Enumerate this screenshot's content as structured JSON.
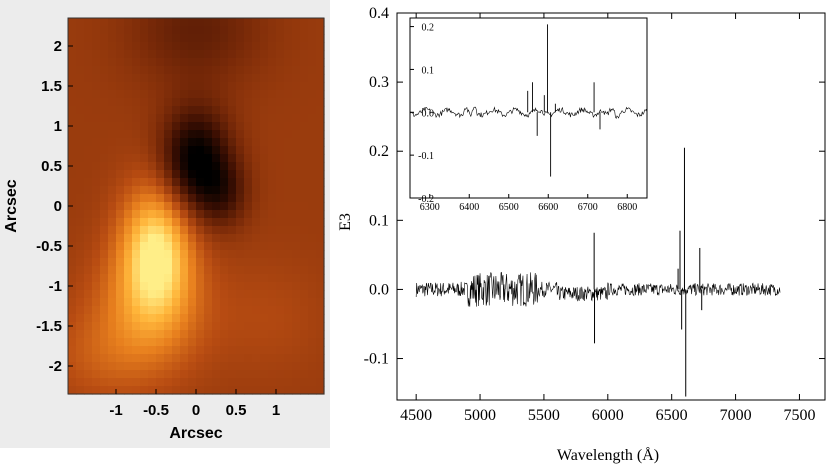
{
  "chart_data": [
    {
      "type": "heatmap",
      "xlabel": "Arcsec",
      "ylabel": "Arcsec",
      "xlim": [
        -1.6,
        1.6
      ],
      "ylim": [
        -2.35,
        2.35
      ],
      "x_ticks": [
        "-1",
        "-0.5",
        "0",
        "0.5",
        "1"
      ],
      "x_tick_values": [
        -1,
        -0.5,
        0,
        0.5,
        1
      ],
      "y_ticks": [
        "2",
        "1.5",
        "1",
        "0.5",
        "0",
        "-0.5",
        "-1",
        "-1.5",
        "-2"
      ],
      "y_tick_values": [
        2,
        1.5,
        1,
        0.5,
        0,
        -0.5,
        -1,
        -1.5,
        -2
      ],
      "colormap": [
        "#000000",
        "#3a0e02",
        "#7a2a08",
        "#b84c12",
        "#e8801e",
        "#ffb53a",
        "#ffee88"
      ],
      "background_level": 0.42,
      "features": [
        {
          "kind": "minimum",
          "x": 0.0,
          "y": 0.55,
          "sx": 0.3,
          "sy": 0.45,
          "amp": -0.45
        },
        {
          "kind": "minimum",
          "x": 0.35,
          "y": 0.15,
          "sx": 0.22,
          "sy": 0.3,
          "amp": -0.18
        },
        {
          "kind": "minimum",
          "x": 0.0,
          "y": 2.2,
          "sx": 0.6,
          "sy": 0.5,
          "amp": -0.15
        },
        {
          "kind": "maximum",
          "x": -0.5,
          "y": -0.55,
          "sx": 0.3,
          "sy": 0.55,
          "amp": 0.55
        },
        {
          "kind": "maximum",
          "x": -0.6,
          "y": -1.3,
          "sx": 0.5,
          "sy": 0.55,
          "amp": 0.25
        },
        {
          "kind": "maximum",
          "x": -1.2,
          "y": -1.9,
          "sx": 0.5,
          "sy": 0.4,
          "amp": 0.1
        },
        {
          "kind": "maximum",
          "x": 0.9,
          "y": -1.4,
          "sx": 0.5,
          "sy": 0.5,
          "amp": 0.06
        }
      ]
    },
    {
      "type": "line",
      "xlabel": "Wavelength (Å)",
      "ylabel": "E3",
      "xlim": [
        4350,
        7700
      ],
      "ylim": [
        -0.16,
        0.4
      ],
      "x_ticks": [
        "4500",
        "5000",
        "5500",
        "6000",
        "6500",
        "7000",
        "7500"
      ],
      "x_tick_values": [
        4500,
        5000,
        5500,
        6000,
        6500,
        7000,
        7500
      ],
      "y_ticks": [
        "0.4",
        "0.3",
        "0.2",
        "0.1",
        "0.0",
        "-0.1"
      ],
      "y_tick_values": [
        0.4,
        0.3,
        0.2,
        0.1,
        0.0,
        -0.1
      ],
      "series": [
        {
          "x_range": [
            4500,
            7350
          ],
          "noise_amplitude": 0.02,
          "features": [
            {
              "x": 5893,
              "y": 0.082
            },
            {
              "x": 5896,
              "y": -0.078
            },
            {
              "x": 6550,
              "y": 0.03
            },
            {
              "x": 6565,
              "y": 0.085
            },
            {
              "x": 6578,
              "y": -0.058
            },
            {
              "x": 6600,
              "y": 0.205
            },
            {
              "x": 6610,
              "y": -0.155
            },
            {
              "x": 6720,
              "y": 0.06
            },
            {
              "x": 6735,
              "y": -0.03
            }
          ]
        }
      ],
      "inset": {
        "xlim": [
          6250,
          6850
        ],
        "ylim": [
          -0.2,
          0.22
        ],
        "x_ticks": [
          "6300",
          "6400",
          "6500",
          "6600",
          "6700",
          "6800"
        ],
        "x_tick_values": [
          6300,
          6400,
          6500,
          6600,
          6700,
          6800
        ],
        "y_ticks": [
          "0.2",
          "0.1",
          "0.0",
          "-0.1",
          "-0.2"
        ],
        "y_tick_values": [
          0.2,
          0.1,
          0.0,
          -0.1,
          -0.2
        ],
        "features": [
          {
            "x": 6548,
            "y": 0.05
          },
          {
            "x": 6560,
            "y": 0.07
          },
          {
            "x": 6572,
            "y": -0.055
          },
          {
            "x": 6590,
            "y": 0.04
          },
          {
            "x": 6598,
            "y": 0.205
          },
          {
            "x": 6606,
            "y": -0.15
          },
          {
            "x": 6618,
            "y": 0.02
          },
          {
            "x": 6716,
            "y": 0.07
          },
          {
            "x": 6731,
            "y": -0.04
          }
        ]
      }
    }
  ]
}
